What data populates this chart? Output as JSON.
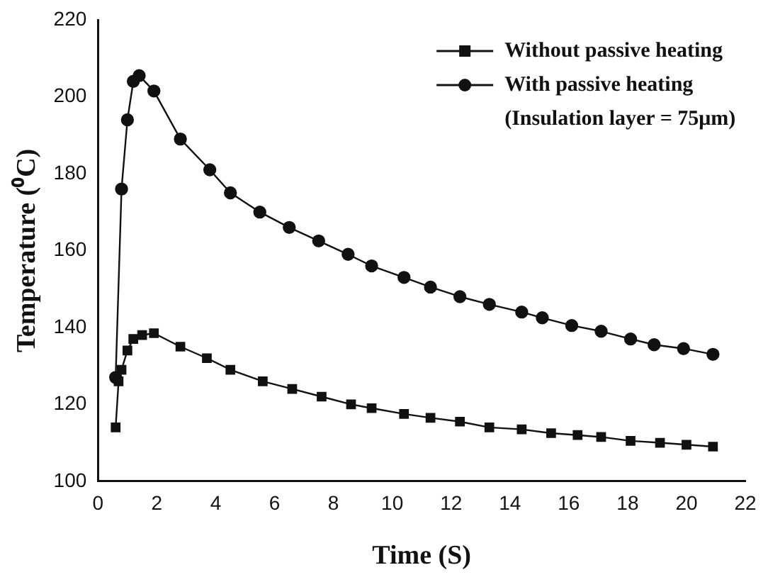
{
  "chart_data": {
    "type": "line",
    "xlabel": "Time (S)",
    "ylabel": "Temperature (⁰C)",
    "xlim": [
      0,
      22
    ],
    "xticks": [
      0,
      2,
      4,
      6,
      8,
      10,
      12,
      14,
      16,
      18,
      20,
      22
    ],
    "ylim": [
      100,
      220
    ],
    "yticks": [
      100,
      120,
      140,
      160,
      180,
      200,
      220
    ],
    "grid": false,
    "legend": "top right",
    "line_style": "solid",
    "annotations": [
      "(Insulation layer = 75μm)"
    ],
    "series": [
      {
        "name": "Without passive heating",
        "color": "#111111",
        "marker": "square",
        "x": [
          0.6,
          0.7,
          0.8,
          1.0,
          1.2,
          1.5,
          1.9,
          2.8,
          3.7,
          4.5,
          5.6,
          6.6,
          7.6,
          8.6,
          9.3,
          10.4,
          11.3,
          12.3,
          13.3,
          14.4,
          15.4,
          16.3,
          17.1,
          18.1,
          19.1,
          20.0,
          20.9
        ],
        "values": [
          114,
          126,
          129,
          134,
          137,
          138,
          138.5,
          135,
          132,
          129,
          126,
          124,
          122,
          120,
          119,
          117.5,
          116.5,
          115.5,
          114,
          113.5,
          112.5,
          112,
          111.5,
          110.5,
          110,
          109.5,
          109
        ]
      },
      {
        "name": "With passive heating",
        "color": "#111111",
        "marker": "circle",
        "x": [
          0.6,
          0.8,
          1.0,
          1.2,
          1.4,
          1.9,
          2.8,
          3.8,
          4.5,
          5.5,
          6.5,
          7.5,
          8.5,
          9.3,
          10.4,
          11.3,
          12.3,
          13.3,
          14.4,
          15.1,
          16.1,
          17.1,
          18.1,
          18.9,
          19.9,
          20.9
        ],
        "values": [
          127,
          176,
          194,
          204,
          205.5,
          201.5,
          189,
          181,
          175,
          170,
          166,
          162.5,
          159,
          156,
          153,
          150.5,
          148,
          146,
          144,
          142.5,
          140.5,
          139,
          137,
          135.5,
          134.5,
          133
        ]
      }
    ]
  }
}
